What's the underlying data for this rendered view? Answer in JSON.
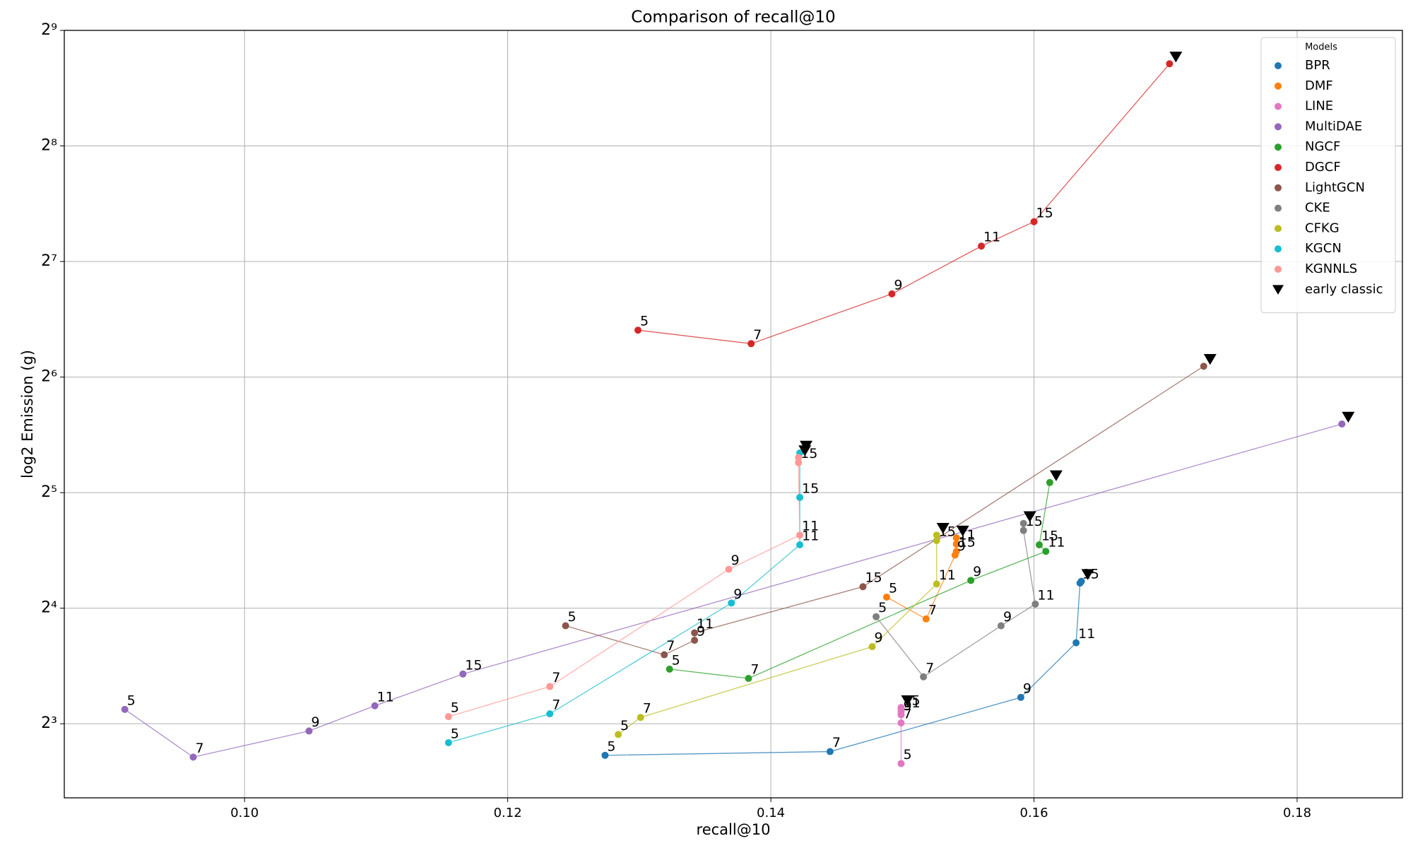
{
  "chart_data": {
    "type": "line",
    "title": "Comparison of recall@10",
    "x_label": "recall@10",
    "y_label": "log2 Emission (g)",
    "xlim": [
      0.0863,
      0.188
    ],
    "ylim": [
      5.13,
      512
    ],
    "y_scale": "log2",
    "xticks": [
      {
        "value": 0.1,
        "label": "0.10"
      },
      {
        "value": 0.12,
        "label": "0.12"
      },
      {
        "value": 0.14,
        "label": "0.14"
      },
      {
        "value": 0.16,
        "label": "0.16"
      },
      {
        "value": 0.18,
        "label": "0.18"
      }
    ],
    "yticks": [
      {
        "value": 8,
        "label": "2³"
      },
      {
        "value": 16,
        "label": "2⁴"
      },
      {
        "value": 32,
        "label": "2⁵"
      },
      {
        "value": 64,
        "label": "2⁶"
      },
      {
        "value": 128,
        "label": "2⁷"
      },
      {
        "value": 256,
        "label": "2⁸"
      },
      {
        "value": 512,
        "label": "2⁹"
      }
    ],
    "grid": true,
    "legend_title": "Models",
    "legend_position": "upper right",
    "series": [
      {
        "name": "BPR",
        "color": "#1f77b4",
        "x": [
          0.1274,
          0.1445,
          0.159,
          0.1632,
          0.1635,
          0.1636
        ],
        "values": [
          6.62,
          6.77,
          9.37,
          13.0,
          18.6,
          18.8
        ],
        "point_labels": [
          5,
          7,
          9,
          11,
          15,
          null
        ]
      },
      {
        "name": "DMF",
        "color": "#ff7f0e",
        "x": [
          0.1488,
          0.1518,
          0.154,
          0.1541,
          0.1541,
          0.1541
        ],
        "values": [
          17.1,
          15.0,
          22.0,
          23.5,
          22.5,
          24.4
        ],
        "point_labels": [
          5,
          7,
          9,
          11,
          15,
          null
        ]
      },
      {
        "name": "LINE",
        "color": "#e377c2",
        "x": [
          0.1499,
          0.1499,
          0.1499,
          0.1499,
          0.1499,
          0.1499
        ],
        "values": [
          6.3,
          8.04,
          8.44,
          8.59,
          8.72,
          8.82
        ],
        "point_labels": [
          5,
          7,
          9,
          11,
          15,
          null
        ]
      },
      {
        "name": "MultiDAE",
        "color": "#9467bd",
        "x": [
          0.0909,
          0.0961,
          0.1049,
          0.1099,
          0.1166,
          0.1834
        ],
        "values": [
          8.72,
          6.55,
          7.66,
          8.91,
          10.78,
          48.3
        ],
        "point_labels": [
          5,
          7,
          9,
          11,
          15,
          null
        ]
      },
      {
        "name": "NGCF",
        "color": "#2ca02c",
        "x": [
          0.1323,
          0.1383,
          0.1552,
          0.1609,
          0.1604,
          0.1612
        ],
        "values": [
          11.1,
          10.5,
          18.9,
          22.5,
          23.4,
          34.0
        ],
        "point_labels": [
          5,
          7,
          9,
          11,
          15,
          null
        ]
      },
      {
        "name": "DGCF",
        "color": "#d62728",
        "x": [
          0.1299,
          0.1385,
          0.1492,
          0.156,
          0.16,
          0.1703
        ],
        "values": [
          84.8,
          78.2,
          105.4,
          140.4,
          162.5,
          419
        ],
        "point_labels": [
          5,
          7,
          9,
          11,
          15,
          null
        ]
      },
      {
        "name": "LightGCN",
        "color": "#8c564b",
        "x": [
          0.1244,
          0.1319,
          0.1342,
          0.1342,
          0.147,
          0.1729
        ],
        "values": [
          14.4,
          12.1,
          13.2,
          13.8,
          18.2,
          68.3
        ],
        "point_labels": [
          5,
          7,
          9,
          11,
          15,
          null
        ]
      },
      {
        "name": "CKE",
        "color": "#7f7f7f",
        "x": [
          0.148,
          0.1516,
          0.1575,
          0.1601,
          0.1592,
          0.1592
        ],
        "values": [
          15.2,
          10.6,
          14.4,
          16.4,
          25.5,
          26.6
        ],
        "point_labels": [
          5,
          7,
          9,
          11,
          15,
          null
        ]
      },
      {
        "name": "CFKG",
        "color": "#bcbd22",
        "x": [
          0.1284,
          0.1301,
          0.1477,
          0.1526,
          0.1526,
          0.1526
        ],
        "values": [
          7.5,
          8.31,
          12.7,
          18.5,
          24.0,
          24.8
        ],
        "point_labels": [
          5,
          7,
          9,
          11,
          15,
          null
        ]
      },
      {
        "name": "KGCN",
        "color": "#17becf",
        "x": [
          0.1155,
          0.1232,
          0.137,
          0.1422,
          0.1422,
          0.1422
        ],
        "values": [
          7.14,
          8.49,
          16.5,
          23.4,
          31.1,
          40.6
        ],
        "point_labels": [
          5,
          7,
          9,
          11,
          15,
          null
        ]
      },
      {
        "name": "KGNNLS",
        "color": "#ff9896",
        "x": [
          0.1155,
          0.1232,
          0.1368,
          0.1422,
          0.1421,
          0.1421
        ],
        "values": [
          8.35,
          10.0,
          20.2,
          24.8,
          38.3,
          39.5
        ],
        "point_labels": [
          5,
          7,
          9,
          11,
          15,
          null
        ]
      },
      {
        "name": "early classic",
        "color": "#000000",
        "marker": "triangle",
        "x": [
          0.1636,
          0.1541,
          0.1499,
          0.1834,
          0.1612,
          0.1703,
          0.1729,
          0.1592,
          0.1526,
          0.1422,
          0.1421
        ],
        "values": [
          18.8,
          24.4,
          8.82,
          48.3,
          34.0,
          419,
          68.3,
          26.6,
          24.8,
          40.6,
          39.5
        ]
      }
    ]
  }
}
